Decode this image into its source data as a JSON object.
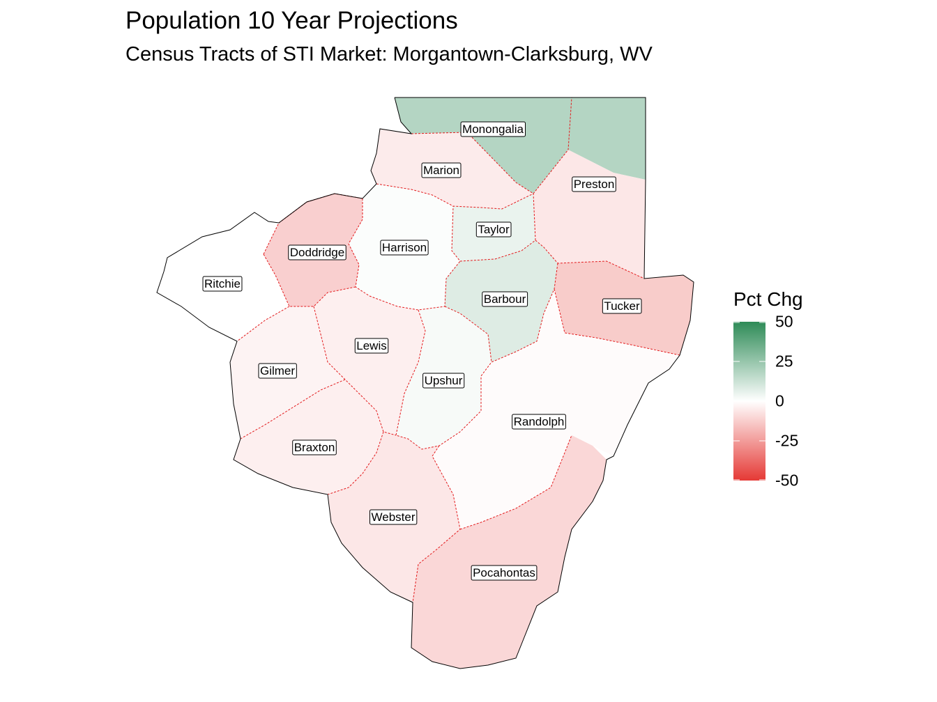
{
  "title": "Population 10 Year Projections",
  "subtitle": "Census Tracts of STI Market: Morgantown-Clarksburg, WV",
  "legend": {
    "title": "Pct Chg",
    "ticks": [
      "50",
      "25",
      "0",
      "-25",
      "-50"
    ],
    "range": [
      -50,
      50
    ],
    "colors": {
      "high": "#2e8b57",
      "mid": "#ffffff",
      "low": "#e53935"
    }
  },
  "counties": [
    {
      "name": "Monongalia",
      "pct_chg": 18
    },
    {
      "name": "Marion",
      "pct_chg": -5
    },
    {
      "name": "Preston",
      "pct_chg": -6
    },
    {
      "name": "Taylor",
      "pct_chg": 5
    },
    {
      "name": "Harrison",
      "pct_chg": 1
    },
    {
      "name": "Doddridge",
      "pct_chg": -12
    },
    {
      "name": "Ritchie",
      "pct_chg": 0
    },
    {
      "name": "Barbour",
      "pct_chg": 8
    },
    {
      "name": "Tucker",
      "pct_chg": -13
    },
    {
      "name": "Lewis",
      "pct_chg": -4
    },
    {
      "name": "Gilmer",
      "pct_chg": -3
    },
    {
      "name": "Upshur",
      "pct_chg": 2
    },
    {
      "name": "Randolph",
      "pct_chg": -1
    },
    {
      "name": "Braxton",
      "pct_chg": -4
    },
    {
      "name": "Webster",
      "pct_chg": -6
    },
    {
      "name": "Pocahontas",
      "pct_chg": -10
    }
  ]
}
